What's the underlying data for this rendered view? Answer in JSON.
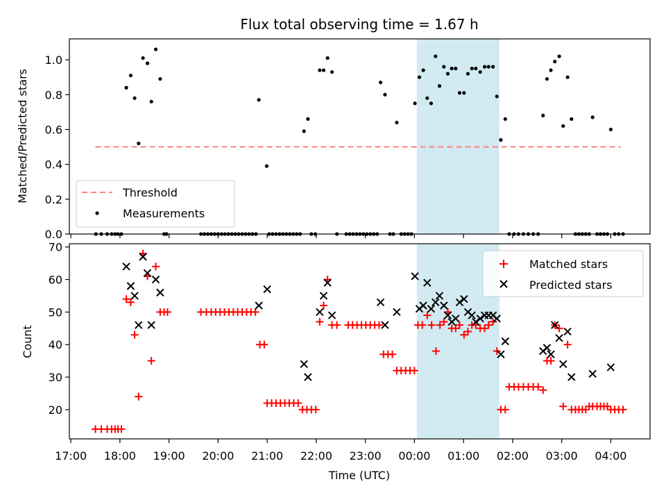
{
  "chart_data": {
    "type": "scatter",
    "title": "Flux total observing time = 1.67 h",
    "xlabel": "Time (UTC)",
    "x_tick_labels": [
      "17:00",
      "18:00",
      "19:00",
      "20:00",
      "21:00",
      "22:00",
      "23:00",
      "00:00",
      "01:00",
      "02:00",
      "03:00",
      "04:00"
    ],
    "x_tick_hours": [
      17,
      18,
      19,
      20,
      21,
      22,
      23,
      24,
      25,
      26,
      27,
      28
    ],
    "xlim_hours": [
      16.97,
      28.8
    ],
    "highlight_span_hours": [
      24.05,
      25.73
    ],
    "colors": {
      "threshold": "#ff7f7f",
      "measurements": "#000000",
      "matched": "#ff0000",
      "predicted": "#000000",
      "span": "#add8e6"
    },
    "top_panel": {
      "ylabel": "Matched/Predicted stars",
      "ylim": [
        0,
        1.12
      ],
      "y_ticks": [
        0.0,
        0.2,
        0.4,
        0.6,
        0.8,
        1.0
      ],
      "y_tick_labels": [
        "0.0",
        "0.2",
        "0.4",
        "0.6",
        "0.8",
        "1.0"
      ],
      "legend": [
        "Threshold",
        "Measurements"
      ],
      "legend_position": "lower-left",
      "threshold": {
        "name": "Threshold",
        "x_range": [
          17.5,
          28.2
        ],
        "y": 0.5
      },
      "measurements": {
        "name": "Measurements",
        "points": [
          [
            17.51,
            0
          ],
          [
            17.62,
            0
          ],
          [
            17.74,
            0
          ],
          [
            17.83,
            0
          ],
          [
            17.9,
            0
          ],
          [
            17.96,
            0
          ],
          [
            18.03,
            0
          ],
          [
            18.13,
            0.84
          ],
          [
            18.22,
            0.91
          ],
          [
            18.3,
            0.78
          ],
          [
            18.38,
            0.52
          ],
          [
            18.47,
            1.01
          ],
          [
            18.56,
            0.98
          ],
          [
            18.64,
            0.76
          ],
          [
            18.73,
            1.06
          ],
          [
            18.82,
            0.89
          ],
          [
            18.9,
            0
          ],
          [
            18.95,
            0
          ],
          [
            19.65,
            0
          ],
          [
            19.72,
            0
          ],
          [
            19.79,
            0
          ],
          [
            19.86,
            0
          ],
          [
            19.93,
            0
          ],
          [
            20.0,
            0
          ],
          [
            20.07,
            0
          ],
          [
            20.14,
            0
          ],
          [
            20.21,
            0
          ],
          [
            20.28,
            0
          ],
          [
            20.35,
            0
          ],
          [
            20.42,
            0
          ],
          [
            20.49,
            0
          ],
          [
            20.56,
            0
          ],
          [
            20.63,
            0
          ],
          [
            20.7,
            0
          ],
          [
            20.77,
            0
          ],
          [
            20.83,
            0.77
          ],
          [
            20.99,
            0.39
          ],
          [
            21.04,
            0
          ],
          [
            21.11,
            0
          ],
          [
            21.18,
            0
          ],
          [
            21.25,
            0
          ],
          [
            21.32,
            0
          ],
          [
            21.39,
            0
          ],
          [
            21.46,
            0
          ],
          [
            21.53,
            0
          ],
          [
            21.6,
            0
          ],
          [
            21.67,
            0
          ],
          [
            21.75,
            0.59
          ],
          [
            21.83,
            0.66
          ],
          [
            21.9,
            0
          ],
          [
            21.98,
            0
          ],
          [
            22.07,
            0.94
          ],
          [
            22.15,
            0.94
          ],
          [
            22.23,
            1.01
          ],
          [
            22.32,
            0.93
          ],
          [
            22.42,
            0
          ],
          [
            22.61,
            0
          ],
          [
            22.68,
            0
          ],
          [
            22.75,
            0
          ],
          [
            22.82,
            0
          ],
          [
            22.89,
            0
          ],
          [
            22.96,
            0
          ],
          [
            23.03,
            0
          ],
          [
            23.1,
            0
          ],
          [
            23.17,
            0
          ],
          [
            23.24,
            0
          ],
          [
            23.31,
            0.87
          ],
          [
            23.4,
            0.8
          ],
          [
            23.5,
            0
          ],
          [
            23.57,
            0
          ],
          [
            23.64,
            0.64
          ],
          [
            23.73,
            0
          ],
          [
            23.8,
            0
          ],
          [
            23.87,
            0
          ],
          [
            23.94,
            0
          ],
          [
            24.01,
            0.75
          ],
          [
            24.1,
            0.9
          ],
          [
            24.18,
            0.94
          ],
          [
            24.26,
            0.78
          ],
          [
            24.34,
            0.75
          ],
          [
            24.43,
            1.02
          ],
          [
            24.51,
            0.85
          ],
          [
            24.6,
            0.96
          ],
          [
            24.68,
            0.92
          ],
          [
            24.76,
            0.95
          ],
          [
            24.84,
            0.95
          ],
          [
            24.92,
            0.81
          ],
          [
            25.01,
            0.81
          ],
          [
            25.09,
            0.92
          ],
          [
            25.17,
            0.95
          ],
          [
            25.25,
            0.95
          ],
          [
            25.34,
            0.93
          ],
          [
            25.43,
            0.96
          ],
          [
            25.51,
            0.96
          ],
          [
            25.6,
            0.96
          ],
          [
            25.68,
            0.79
          ],
          [
            25.76,
            0.54
          ],
          [
            25.85,
            0.66
          ],
          [
            25.93,
            0
          ],
          [
            26.03,
            0
          ],
          [
            26.12,
            0
          ],
          [
            26.22,
            0
          ],
          [
            26.32,
            0
          ],
          [
            26.42,
            0
          ],
          [
            26.52,
            0
          ],
          [
            26.62,
            0.68
          ],
          [
            26.7,
            0.89
          ],
          [
            26.78,
            0.94
          ],
          [
            26.86,
            0.99
          ],
          [
            26.95,
            1.02
          ],
          [
            27.03,
            0.62
          ],
          [
            27.12,
            0.9
          ],
          [
            27.2,
            0.66
          ],
          [
            27.28,
            0
          ],
          [
            27.35,
            0
          ],
          [
            27.42,
            0
          ],
          [
            27.49,
            0
          ],
          [
            27.56,
            0
          ],
          [
            27.63,
            0.67
          ],
          [
            27.72,
            0
          ],
          [
            27.79,
            0
          ],
          [
            27.86,
            0
          ],
          [
            27.93,
            0
          ],
          [
            28.0,
            0.6
          ],
          [
            28.08,
            0
          ],
          [
            28.16,
            0
          ],
          [
            28.25,
            0
          ]
        ]
      }
    },
    "bottom_panel": {
      "ylabel": "Count",
      "ylim": [
        11,
        71
      ],
      "y_ticks": [
        20,
        30,
        40,
        50,
        60,
        70
      ],
      "y_tick_labels": [
        "20",
        "30",
        "40",
        "50",
        "60",
        "70"
      ],
      "legend": [
        "Matched stars",
        "Predicted stars"
      ],
      "legend_position": "upper-right",
      "matched": {
        "name": "Matched stars",
        "points": [
          [
            17.5,
            14
          ],
          [
            17.62,
            14
          ],
          [
            17.74,
            14
          ],
          [
            17.83,
            14
          ],
          [
            17.9,
            14
          ],
          [
            17.96,
            14
          ],
          [
            18.03,
            14
          ],
          [
            18.13,
            54
          ],
          [
            18.22,
            53
          ],
          [
            18.3,
            43
          ],
          [
            18.38,
            24
          ],
          [
            18.47,
            68
          ],
          [
            18.56,
            61
          ],
          [
            18.64,
            35
          ],
          [
            18.73,
            64
          ],
          [
            18.82,
            50
          ],
          [
            18.9,
            50
          ],
          [
            18.97,
            50
          ],
          [
            19.65,
            50
          ],
          [
            19.76,
            50
          ],
          [
            19.86,
            50
          ],
          [
            19.95,
            50
          ],
          [
            20.04,
            50
          ],
          [
            20.13,
            50
          ],
          [
            20.22,
            50
          ],
          [
            20.31,
            50
          ],
          [
            20.4,
            50
          ],
          [
            20.49,
            50
          ],
          [
            20.58,
            50
          ],
          [
            20.67,
            50
          ],
          [
            20.76,
            50
          ],
          [
            20.85,
            40
          ],
          [
            20.94,
            40
          ],
          [
            21.0,
            22
          ],
          [
            21.09,
            22
          ],
          [
            21.18,
            22
          ],
          [
            21.27,
            22
          ],
          [
            21.36,
            22
          ],
          [
            21.45,
            22
          ],
          [
            21.54,
            22
          ],
          [
            21.63,
            22
          ],
          [
            21.72,
            20
          ],
          [
            21.81,
            20
          ],
          [
            21.9,
            20
          ],
          [
            21.99,
            20
          ],
          [
            22.07,
            47
          ],
          [
            22.15,
            52
          ],
          [
            22.23,
            60
          ],
          [
            22.32,
            46
          ],
          [
            22.42,
            46
          ],
          [
            22.65,
            46
          ],
          [
            22.74,
            46
          ],
          [
            22.83,
            46
          ],
          [
            22.92,
            46
          ],
          [
            23.01,
            46
          ],
          [
            23.1,
            46
          ],
          [
            23.19,
            46
          ],
          [
            23.28,
            46
          ],
          [
            23.37,
            37
          ],
          [
            23.46,
            37
          ],
          [
            23.55,
            37
          ],
          [
            23.64,
            32
          ],
          [
            23.73,
            32
          ],
          [
            23.82,
            32
          ],
          [
            23.91,
            32
          ],
          [
            24.0,
            32
          ],
          [
            24.07,
            46
          ],
          [
            24.16,
            46
          ],
          [
            24.26,
            49
          ],
          [
            24.35,
            46
          ],
          [
            24.44,
            38
          ],
          [
            24.52,
            46
          ],
          [
            24.6,
            47
          ],
          [
            24.68,
            50
          ],
          [
            24.76,
            45
          ],
          [
            24.84,
            45
          ],
          [
            24.92,
            46
          ],
          [
            25.01,
            43
          ],
          [
            25.09,
            44
          ],
          [
            25.17,
            46
          ],
          [
            25.25,
            46
          ],
          [
            25.34,
            45
          ],
          [
            25.43,
            45
          ],
          [
            25.51,
            46
          ],
          [
            25.6,
            47
          ],
          [
            25.68,
            38
          ],
          [
            25.76,
            20
          ],
          [
            25.85,
            20
          ],
          [
            25.93,
            27
          ],
          [
            26.03,
            27
          ],
          [
            26.12,
            27
          ],
          [
            26.22,
            27
          ],
          [
            26.32,
            27
          ],
          [
            26.42,
            27
          ],
          [
            26.52,
            27
          ],
          [
            26.62,
            26
          ],
          [
            26.7,
            35
          ],
          [
            26.78,
            35
          ],
          [
            26.86,
            46
          ],
          [
            26.95,
            45
          ],
          [
            27.03,
            21
          ],
          [
            27.12,
            40
          ],
          [
            27.2,
            20
          ],
          [
            27.28,
            20
          ],
          [
            27.35,
            20
          ],
          [
            27.42,
            20
          ],
          [
            27.49,
            20
          ],
          [
            27.56,
            21
          ],
          [
            27.63,
            21
          ],
          [
            27.72,
            21
          ],
          [
            27.79,
            21
          ],
          [
            27.86,
            21
          ],
          [
            27.93,
            21
          ],
          [
            28.0,
            20
          ],
          [
            28.08,
            20
          ],
          [
            28.16,
            20
          ],
          [
            28.25,
            20
          ]
        ]
      },
      "predicted": {
        "name": "Predicted stars",
        "points": [
          [
            18.13,
            64
          ],
          [
            18.22,
            58
          ],
          [
            18.3,
            55
          ],
          [
            18.38,
            46
          ],
          [
            18.47,
            67
          ],
          [
            18.56,
            62
          ],
          [
            18.64,
            46
          ],
          [
            18.73,
            60
          ],
          [
            18.82,
            56
          ],
          [
            20.83,
            52
          ],
          [
            21.0,
            57
          ],
          [
            21.75,
            34
          ],
          [
            21.83,
            30
          ],
          [
            22.07,
            50
          ],
          [
            22.15,
            55
          ],
          [
            22.23,
            59
          ],
          [
            22.32,
            49
          ],
          [
            23.31,
            53
          ],
          [
            23.4,
            46
          ],
          [
            23.64,
            50
          ],
          [
            24.01,
            61
          ],
          [
            24.1,
            51
          ],
          [
            24.18,
            52
          ],
          [
            24.26,
            59
          ],
          [
            24.34,
            51
          ],
          [
            24.43,
            53
          ],
          [
            24.51,
            55
          ],
          [
            24.6,
            52
          ],
          [
            24.68,
            49
          ],
          [
            24.76,
            47
          ],
          [
            24.84,
            48
          ],
          [
            24.92,
            53
          ],
          [
            25.01,
            54
          ],
          [
            25.09,
            50
          ],
          [
            25.17,
            49
          ],
          [
            25.25,
            47
          ],
          [
            25.34,
            48
          ],
          [
            25.43,
            49
          ],
          [
            25.51,
            49
          ],
          [
            25.6,
            49
          ],
          [
            25.68,
            48
          ],
          [
            25.76,
            37
          ],
          [
            25.85,
            41
          ],
          [
            26.62,
            38
          ],
          [
            26.7,
            39
          ],
          [
            26.78,
            37
          ],
          [
            26.86,
            46
          ],
          [
            26.95,
            42
          ],
          [
            27.03,
            34
          ],
          [
            27.12,
            44
          ],
          [
            27.2,
            30
          ],
          [
            27.63,
            31
          ],
          [
            28.0,
            33
          ]
        ]
      }
    }
  }
}
